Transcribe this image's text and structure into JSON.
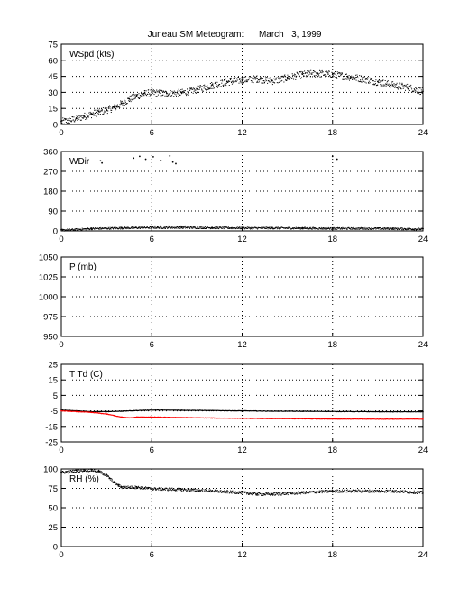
{
  "title": "Juneau SM Meteogram:      March   3, 1999",
  "chart_data": [
    {
      "type": "scatter",
      "panel_label": "WSpd (kts)",
      "xlim": [
        0,
        24
      ],
      "ylim": [
        0,
        75
      ],
      "xticks": [
        0,
        6,
        12,
        18,
        24
      ],
      "yticks": [
        0,
        15,
        30,
        45,
        60,
        75
      ],
      "grid": true,
      "series": [
        {
          "color": "#000000",
          "x": [
            0,
            0.5,
            1,
            1.5,
            2,
            2.5,
            3,
            3.5,
            4,
            4.5,
            5,
            5.5,
            6,
            7,
            8,
            9,
            10,
            11,
            12,
            13,
            14,
            15,
            16,
            17,
            18,
            19,
            20,
            21,
            22,
            23,
            24
          ],
          "y": [
            3,
            4,
            6,
            8,
            10,
            12,
            14,
            16,
            20,
            24,
            27,
            29,
            30,
            29,
            30,
            33,
            37,
            40,
            42,
            43,
            41,
            44,
            47,
            48,
            47,
            45,
            43,
            40,
            37,
            35,
            31
          ]
        }
      ]
    },
    {
      "type": "scatter",
      "panel_label": "WDir",
      "xlim": [
        0,
        24
      ],
      "ylim": [
        0,
        360
      ],
      "xticks": [
        0,
        6,
        12,
        18,
        24
      ],
      "yticks": [
        0,
        90,
        180,
        270,
        360
      ],
      "grid": true,
      "series": [
        {
          "color": "#000000",
          "x": [
            0,
            2,
            4,
            6,
            8,
            10,
            12,
            14,
            16,
            18,
            20,
            22,
            24
          ],
          "y": [
            5,
            12,
            15,
            17,
            17,
            16,
            15,
            15,
            14,
            13,
            13,
            12,
            10
          ]
        },
        {
          "color": "#000000",
          "x": [
            2.6,
            2.7,
            4.8,
            5.2,
            5.6,
            6.1,
            6.6,
            7.2,
            7.4,
            7.6,
            18.0,
            18.3
          ],
          "y": [
            318,
            308,
            330,
            338,
            325,
            336,
            320,
            340,
            312,
            305,
            338,
            325
          ]
        }
      ]
    },
    {
      "type": "scatter",
      "panel_label": "P (mb)",
      "xlim": [
        0,
        24
      ],
      "ylim": [
        950,
        1050
      ],
      "xticks": [
        0,
        6,
        12,
        18,
        24
      ],
      "yticks": [
        950,
        975,
        1000,
        1025,
        1050
      ],
      "grid": true,
      "series": []
    },
    {
      "type": "line",
      "panel_label": "T Td (C)",
      "xlim": [
        0,
        24
      ],
      "ylim": [
        -25,
        25
      ],
      "xticks": [
        0,
        6,
        12,
        18,
        24
      ],
      "yticks": [
        -25,
        -15,
        -5,
        5,
        15,
        25
      ],
      "grid": true,
      "series": [
        {
          "color": "#000000",
          "x": [
            0,
            1,
            2,
            3,
            4,
            5,
            6,
            8,
            10,
            12,
            14,
            16,
            18,
            20,
            22,
            24
          ],
          "y": [
            -4.5,
            -5,
            -5.5,
            -5.5,
            -5.2,
            -4.8,
            -4.5,
            -4.6,
            -4.8,
            -5.0,
            -5.2,
            -5.3,
            -5.4,
            -5.5,
            -5.6,
            -5.6
          ]
        },
        {
          "color": "#ff0000",
          "x": [
            0,
            1,
            2,
            3,
            3.5,
            4,
            4.5,
            5,
            6,
            8,
            10,
            12,
            14,
            16,
            18,
            20,
            22,
            24
          ],
          "y": [
            -5,
            -5.5,
            -6,
            -7,
            -8,
            -9,
            -9.5,
            -9,
            -9,
            -9.3,
            -9.6,
            -9.8,
            -10,
            -10.1,
            -10.2,
            -10.3,
            -10.3,
            -10.3
          ]
        }
      ]
    },
    {
      "type": "scatter",
      "panel_label": "RH (%)",
      "xlim": [
        0,
        24
      ],
      "ylim": [
        0,
        100
      ],
      "xticks": [
        0,
        6,
        12,
        18,
        24
      ],
      "yticks": [
        0,
        25,
        50,
        75,
        100
      ],
      "grid": true,
      "series": [
        {
          "color": "#000000",
          "x": [
            0,
            0.5,
            1,
            1.5,
            2,
            2.5,
            3,
            3.2,
            3.5,
            3.8,
            4,
            5,
            6,
            8,
            10,
            12,
            13,
            14,
            15,
            16,
            18,
            20,
            22,
            24
          ],
          "y": [
            96,
            97,
            98,
            99,
            99,
            97,
            92,
            88,
            83,
            79,
            77,
            77,
            75,
            74,
            72,
            70,
            68,
            68,
            69,
            70,
            72,
            72,
            72,
            70
          ]
        }
      ]
    }
  ]
}
